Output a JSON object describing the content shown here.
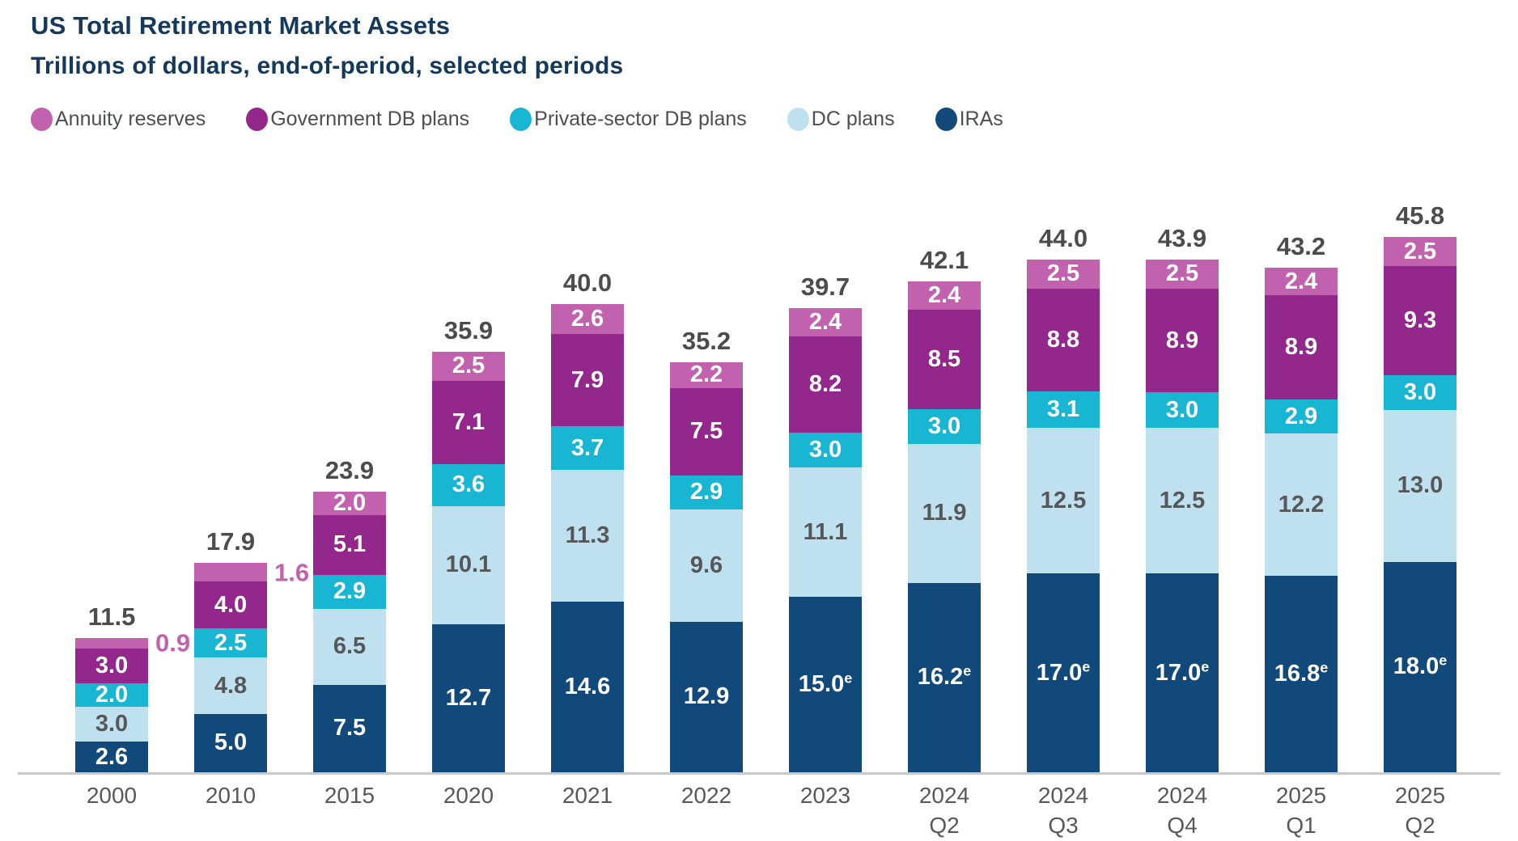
{
  "title": "US Total Retirement Market Assets",
  "subtitle": "Trillions of dollars, end-of-period, selected periods",
  "legend": [
    {
      "label": "Annuity reserves",
      "color": "#c262ae"
    },
    {
      "label": "Government DB plans",
      "color": "#93278b"
    },
    {
      "label": "Private-sector DB plans",
      "color": "#18b6d3"
    },
    {
      "label": "DC plans",
      "color": "#bfe0ee"
    },
    {
      "label": "IRAs",
      "color": "#11497b"
    }
  ],
  "chart_data": {
    "type": "bar",
    "stacked": true,
    "title": "US Total Retirement Market Assets",
    "subtitle": "Trillions of dollars, end-of-period, selected periods",
    "unit": "trillions of US dollars",
    "grid": false,
    "legend_position": "top",
    "ylim": [
      0,
      46
    ],
    "categories": [
      "2000",
      "2010",
      "2015",
      "2020",
      "2021",
      "2022",
      "2023",
      "2024 Q2",
      "2024 Q3",
      "2024 Q4",
      "2025 Q1",
      "2025 Q2"
    ],
    "totals": [
      "11.5",
      "17.9",
      "23.9",
      "35.9",
      "40.0",
      "35.2",
      "39.7",
      "42.1",
      "44.0",
      "43.9",
      "43.2",
      "45.8"
    ],
    "estimate_note_marker": "e",
    "series": [
      {
        "name": "IRAs",
        "color": "#11497b",
        "label_color": "#ffffff",
        "values": [
          2.6,
          5.0,
          7.5,
          12.7,
          14.6,
          12.9,
          15.0,
          16.2,
          17.0,
          17.0,
          16.8,
          18.0
        ],
        "estimated": [
          false,
          false,
          false,
          false,
          false,
          false,
          true,
          true,
          true,
          true,
          true,
          true
        ]
      },
      {
        "name": "DC plans",
        "color": "#bfe0ee",
        "label_color": "#565759",
        "values": [
          3.0,
          4.8,
          6.5,
          10.1,
          11.3,
          9.6,
          11.1,
          11.9,
          12.5,
          12.5,
          12.2,
          13.0
        ]
      },
      {
        "name": "Private-sector DB plans",
        "color": "#18b6d3",
        "label_color": "#ffffff",
        "values": [
          2.0,
          2.5,
          2.9,
          3.6,
          3.7,
          2.9,
          3.0,
          3.0,
          3.1,
          3.0,
          2.9,
          3.0
        ]
      },
      {
        "name": "Government DB plans",
        "color": "#93278b",
        "label_color": "#ffffff",
        "values": [
          3.0,
          4.0,
          5.1,
          7.1,
          7.9,
          7.5,
          8.2,
          8.5,
          8.8,
          8.9,
          8.9,
          9.3
        ]
      },
      {
        "name": "Annuity reserves",
        "color": "#c262ae",
        "label_color": "#ffffff",
        "values": [
          0.9,
          1.6,
          2.0,
          2.5,
          2.6,
          2.2,
          2.4,
          2.4,
          2.5,
          2.5,
          2.4,
          2.5
        ],
        "label_outside": [
          true,
          true,
          false,
          false,
          false,
          false,
          false,
          false,
          false,
          false,
          false,
          false
        ]
      }
    ]
  }
}
